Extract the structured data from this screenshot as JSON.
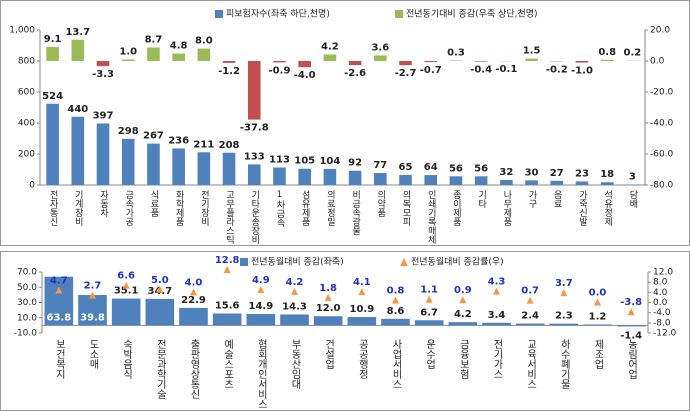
{
  "chart_data": [
    {
      "type": "bar",
      "categories": [
        "전자통신",
        "기계장비",
        "자동차",
        "금속가공",
        "식료품",
        "화학제품",
        "전기장비",
        "고무플라스틱",
        "기타운송장비",
        "1차금속",
        "섬유제품",
        "의료정밀",
        "비금속광물",
        "의약품",
        "의복모피",
        "인쇄기록매체",
        "종이제품",
        "기타",
        "나무제품",
        "가구",
        "음료",
        "가죽신발",
        "석유정제",
        "담배"
      ],
      "series": [
        {
          "name": "피보험자수(좌축 하단,천명)",
          "color": "#4f81bd",
          "axis": "y",
          "values": [
            524,
            440,
            397,
            298,
            267,
            236,
            211,
            208,
            133,
            113,
            105,
            104,
            92,
            77,
            65,
            64,
            56,
            56,
            32,
            30,
            27,
            23,
            18,
            3
          ]
        },
        {
          "name": "전년동기대비 증감(우축 상단,천명)",
          "color": "#9bbb59",
          "negative_color": "#c0504d",
          "axis": "y2",
          "values": [
            9.1,
            13.7,
            -3.3,
            1.0,
            8.7,
            4.8,
            8.0,
            -1.2,
            -37.8,
            -0.9,
            -4.0,
            4.2,
            -2.6,
            3.6,
            -2.7,
            -0.7,
            0.3,
            -0.4,
            -0.1,
            1.5,
            -0.2,
            -1.0,
            0.8,
            0.2
          ],
          "value_labels": [
            "9.1",
            "13.7",
            "-3.3",
            "1.0",
            "8.7",
            "4.8",
            "8.0",
            "-1.2",
            "-37.8",
            "-0.9",
            "-4.0",
            "4.2",
            "-2.6",
            "3.6",
            "-2.7",
            "-0.7",
            "0.3",
            "-0.4",
            "-0.1",
            "1.5",
            "-0.2",
            "-1.0",
            "0.8",
            "0.2"
          ]
        }
      ],
      "ylim": [
        0,
        1000
      ],
      "yticks": [
        0,
        200,
        400,
        600,
        800,
        {
          "value": 1000,
          "label": "1,000"
        }
      ],
      "y2lim": [
        -80,
        20
      ],
      "y2ticks": [
        {
          "value": 20,
          "label": "20.0"
        },
        {
          "value": 0,
          "label": "0.0"
        },
        {
          "value": -20,
          "label": "-20.0"
        },
        {
          "value": -40,
          "label": "-40.0"
        },
        {
          "value": -60,
          "label": "-60.0"
        },
        {
          "value": -80,
          "label": "-80.0"
        }
      ],
      "grid": false
    },
    {
      "type": "bar",
      "categories": [
        "보건복지",
        "도소매",
        "숙박음식",
        "전문과학기술",
        "출판영상통신",
        "예술스포츠",
        "협회개인서비스",
        "부동산임대",
        "건설업",
        "공공행정",
        "사업서비스",
        "운수업",
        "금융보험",
        "전기가스",
        "교육서비스",
        "하수폐기물",
        "제조업",
        "농림어업"
      ],
      "series": [
        {
          "name": "전년동월대비 증감(좌축)",
          "color": "#4f81bd",
          "axis": "y",
          "values": [
            63.8,
            39.8,
            35.1,
            34.7,
            22.9,
            15.6,
            14.9,
            14.3,
            12.0,
            10.9,
            8.6,
            6.7,
            4.2,
            3.4,
            2.4,
            2.3,
            1.2,
            -1.4
          ],
          "value_labels": [
            "63.8",
            "39.8",
            "35.1",
            "34.7",
            "22.9",
            "15.6",
            "14.9",
            "14.3",
            "12.0",
            "10.9",
            "8.6",
            "6.7",
            "4.2",
            "3.4",
            "2.4",
            "2.3",
            "1.2",
            "-1.4"
          ]
        },
        {
          "name": "전년동월대비 증감률(우)",
          "color": "#f79646",
          "axis": "y2",
          "marker": "triangle",
          "values": [
            4.7,
            2.7,
            6.6,
            5.0,
            4.0,
            12.8,
            4.9,
            4.2,
            1.8,
            4.1,
            0.8,
            1.1,
            0.9,
            4.3,
            0.7,
            3.7,
            0.0,
            -3.8
          ],
          "value_labels": [
            "4.7",
            "2.7",
            "6.6",
            "5.0",
            "4.0",
            "12.8",
            "4.9",
            "4.2",
            "1.8",
            "4.1",
            "0.8",
            "1.1",
            "0.9",
            "4.3",
            "0.7",
            "3.7",
            "0.0",
            "-3.8"
          ]
        }
      ],
      "ylim": [
        -10,
        70
      ],
      "yticks": [
        {
          "value": 70,
          "label": "70.0"
        },
        {
          "value": 50,
          "label": "50.0"
        },
        {
          "value": 30,
          "label": "30.0"
        },
        {
          "value": 10,
          "label": "10.0"
        },
        {
          "value": -10,
          "label": "-10.0"
        }
      ],
      "y2lim": [
        -12,
        12
      ],
      "y2ticks": [
        {
          "value": 12,
          "label": "12.0"
        },
        {
          "value": 8,
          "label": "8.0"
        },
        {
          "value": 4,
          "label": "4.0"
        },
        {
          "value": 0,
          "label": "0.0"
        },
        {
          "value": -4,
          "label": "-4.0"
        },
        {
          "value": -8,
          "label": "-8.0"
        },
        {
          "value": -12,
          "label": "-12.0"
        }
      ],
      "grid": false
    }
  ]
}
